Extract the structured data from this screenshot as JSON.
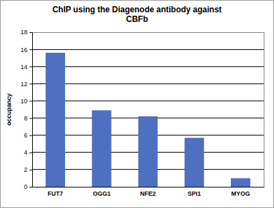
{
  "chart_data": {
    "type": "bar",
    "title": "ChIP using the Diagenode antibody against CBFb",
    "y_label": "occupancy",
    "categories": [
      "FUT7",
      "OGG1",
      "NFE2",
      "SPI1",
      "MYOG"
    ],
    "values": [
      15.6,
      8.9,
      8.2,
      5.7,
      1.0
    ],
    "color": "#4f6fc0",
    "ylim": [
      0,
      18
    ],
    "yticks": [
      0,
      2,
      4,
      6,
      8,
      10,
      12,
      14,
      16,
      18
    ],
    "grid": true
  }
}
